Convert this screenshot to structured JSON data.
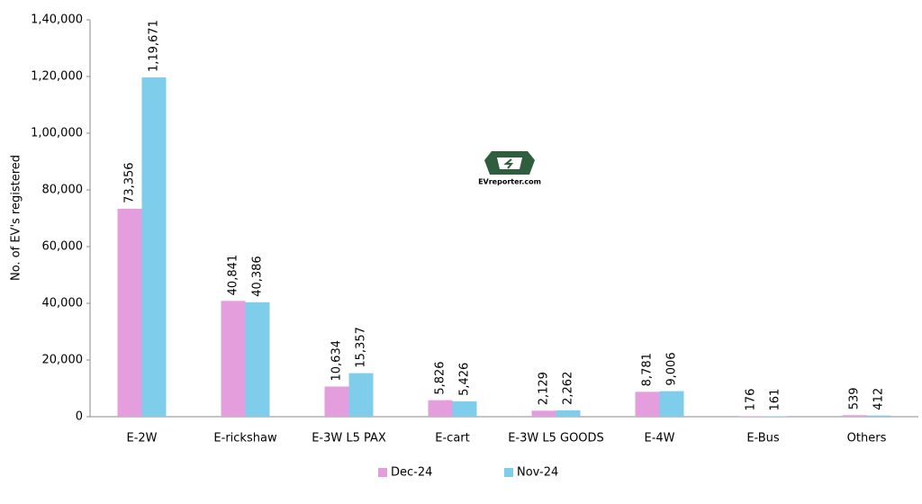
{
  "chart_data": {
    "type": "bar",
    "y_label": "No. of EV's registered",
    "watermark": "EVreporter.com",
    "categories": [
      "E-2W",
      "E-rickshaw",
      "E-3W L5 PAX",
      "E-cart",
      "E-3W L5 GOODS",
      "E-4W",
      "E-Bus",
      "Others"
    ],
    "series": [
      {
        "name": "Dec-24",
        "color": "#e49edd",
        "values": [
          73356,
          40841,
          10634,
          5826,
          2129,
          8781,
          176,
          539
        ],
        "value_labels": [
          "73,356",
          "40,841",
          "10,634",
          "5,826",
          "2,129",
          "8,781",
          "176",
          "539"
        ]
      },
      {
        "name": "Nov-24",
        "color": "#7dcdeb",
        "values": [
          119671,
          40386,
          15357,
          5426,
          2262,
          9006,
          161,
          412
        ],
        "value_labels": [
          "1,19,671",
          "40,386",
          "15,357",
          "5,426",
          "2,262",
          "9,006",
          "161",
          "412"
        ]
      }
    ],
    "ylim": [
      0,
      140000
    ],
    "yticks": [
      0,
      {
        "value": 20000,
        "label": "20,000"
      },
      {
        "value": 40000,
        "label": "40,000"
      },
      {
        "value": 60000,
        "label": "60,000"
      },
      {
        "value": 80000,
        "label": "80,000"
      },
      {
        "value": 100000,
        "label": "1,00,000"
      },
      {
        "value": 120000,
        "label": "1,20,000"
      },
      {
        "value": 140000,
        "label": "1,40,000"
      }
    ],
    "grid": false,
    "legend": "bottom"
  }
}
